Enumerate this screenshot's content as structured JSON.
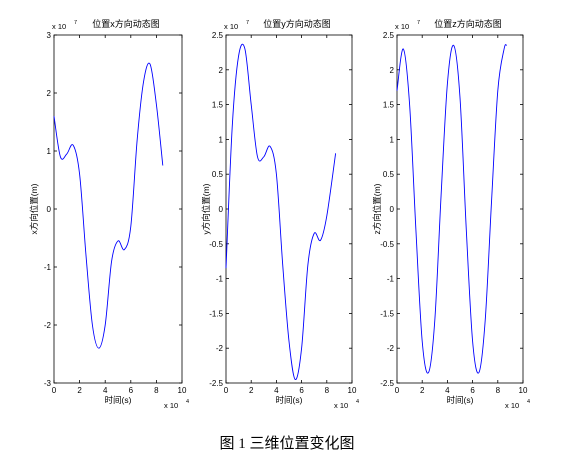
{
  "caption": "图 1  三维位置变化图",
  "chart_data": [
    {
      "type": "line",
      "title": "位置x方向动态图",
      "xlabel": "时间(s)",
      "ylabel": "x方向位置(m)",
      "x_exponent": "x 10",
      "x_exponent_power": "4",
      "y_exponent": "x 10",
      "y_exponent_power": "7",
      "xlim": [
        0,
        10
      ],
      "ylim": [
        -3,
        3
      ],
      "xticks": [
        "0",
        "2",
        "4",
        "6",
        "8",
        "10"
      ],
      "yticks": [
        "-3",
        "-2",
        "-1",
        "0",
        "1",
        "2",
        "3"
      ],
      "line_color": "#0000ff",
      "series": [
        {
          "x": [
            0,
            0.5,
            1.0,
            1.5,
            2.0,
            2.5,
            3.0,
            3.5,
            4.0,
            4.5,
            5.0,
            5.5,
            6.0,
            6.5,
            7.0,
            7.5,
            8.0,
            8.5
          ],
          "y": [
            1.6,
            0.9,
            0.95,
            1.1,
            0.6,
            -0.8,
            -2.0,
            -2.4,
            -2.0,
            -0.9,
            -0.55,
            -0.7,
            -0.3,
            1.2,
            2.2,
            2.5,
            1.8,
            0.75
          ]
        }
      ]
    },
    {
      "type": "line",
      "title": "位置y方向动态图",
      "xlabel": "时间(s)",
      "ylabel": "y方向位置(m)",
      "x_exponent": "x 10",
      "x_exponent_power": "4",
      "y_exponent": "x 10",
      "y_exponent_power": "7",
      "xlim": [
        0,
        10
      ],
      "ylim": [
        -2.5,
        2.5
      ],
      "xticks": [
        "0",
        "2",
        "4",
        "6",
        "8",
        "10"
      ],
      "yticks": [
        "-2.5",
        "-2",
        "-1.5",
        "-1",
        "-0.5",
        "0",
        "0.5",
        "1",
        "1.5",
        "2",
        "2.5"
      ],
      "line_color": "#0000ff",
      "series": [
        {
          "x": [
            0,
            0.5,
            1.0,
            1.5,
            2.0,
            2.5,
            3.0,
            3.5,
            4.0,
            4.5,
            5.0,
            5.5,
            6.0,
            6.5,
            7.0,
            7.5,
            8.0,
            8.7
          ],
          "y": [
            -0.85,
            1.2,
            2.2,
            2.3,
            1.5,
            0.75,
            0.75,
            0.9,
            0.5,
            -0.8,
            -1.9,
            -2.45,
            -2.0,
            -0.8,
            -0.35,
            -0.45,
            -0.1,
            0.8
          ]
        }
      ]
    },
    {
      "type": "line",
      "title": "位置z方向动态图",
      "xlabel": "时间(s)",
      "ylabel": "z方向位置(m)",
      "x_exponent": "x 10",
      "x_exponent_power": "4",
      "y_exponent": "x 10",
      "y_exponent_power": "7",
      "xlim": [
        0,
        10
      ],
      "ylim": [
        -2.5,
        2.5
      ],
      "xticks": [
        "0",
        "2",
        "4",
        "6",
        "8",
        "10"
      ],
      "yticks": [
        "-2.5",
        "-2",
        "-1.5",
        "-1",
        "-0.5",
        "0",
        "0.5",
        "1",
        "1.5",
        "2",
        "2.5"
      ],
      "line_color": "#0000ff",
      "series": [
        {
          "x": [
            0,
            0.5,
            1.0,
            1.5,
            2.0,
            2.5,
            3.0,
            3.5,
            4.0,
            4.5,
            5.0,
            5.5,
            6.0,
            6.5,
            7.0,
            7.5,
            8.0,
            8.5,
            8.7
          ],
          "y": [
            1.7,
            2.3,
            1.5,
            -0.3,
            -1.9,
            -2.35,
            -1.6,
            0.2,
            1.8,
            2.35,
            1.6,
            -0.3,
            -1.9,
            -2.35,
            -1.6,
            0.1,
            1.7,
            2.3,
            2.35
          ]
        }
      ]
    }
  ]
}
